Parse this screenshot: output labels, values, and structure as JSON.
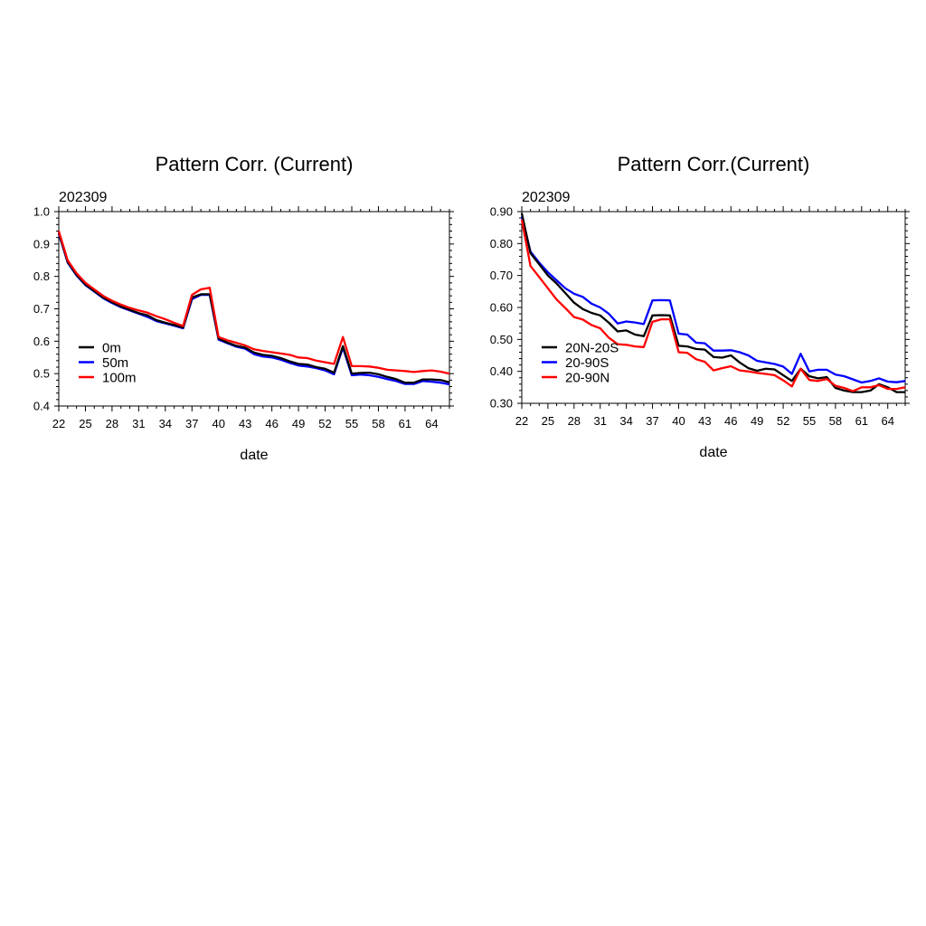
{
  "chart_data": [
    {
      "type": "line",
      "title": "Pattern Corr. (Current)",
      "subtitle": "202309",
      "xlabel": "date",
      "ylabel": "",
      "xlim": [
        22,
        66
      ],
      "ylim": [
        0.4,
        1.0
      ],
      "xticks": [
        22,
        25,
        28,
        31,
        34,
        37,
        40,
        43,
        46,
        49,
        52,
        55,
        58,
        61,
        64
      ],
      "yticks": [
        0.4,
        0.5,
        0.6,
        0.7,
        0.8,
        0.9,
        1.0
      ],
      "ytick_labels": [
        "0.4",
        "0.5",
        "0.6",
        "0.7",
        "0.8",
        "0.9",
        "1.0"
      ],
      "legend_position": "left-lower",
      "x": [
        22,
        23,
        24,
        25,
        26,
        27,
        28,
        29,
        30,
        31,
        32,
        33,
        34,
        35,
        36,
        37,
        38,
        39,
        40,
        41,
        42,
        43,
        44,
        45,
        46,
        47,
        48,
        49,
        50,
        51,
        52,
        53,
        54,
        55,
        56,
        57,
        58,
        59,
        60,
        61,
        62,
        63,
        64,
        65,
        66
      ],
      "series": [
        {
          "name": "0m",
          "color": "#000000",
          "values": [
            0.935,
            0.845,
            0.805,
            0.775,
            0.755,
            0.735,
            0.72,
            0.707,
            0.697,
            0.687,
            0.68,
            0.665,
            0.657,
            0.65,
            0.642,
            0.735,
            0.745,
            0.745,
            0.608,
            0.596,
            0.586,
            0.58,
            0.565,
            0.558,
            0.555,
            0.548,
            0.538,
            0.53,
            0.528,
            0.52,
            0.515,
            0.503,
            0.585,
            0.5,
            0.502,
            0.503,
            0.498,
            0.49,
            0.483,
            0.472,
            0.472,
            0.482,
            0.482,
            0.48,
            0.473
          ]
        },
        {
          "name": "50m",
          "color": "#0000ff",
          "values": [
            0.932,
            0.843,
            0.803,
            0.773,
            0.753,
            0.733,
            0.718,
            0.705,
            0.695,
            0.685,
            0.675,
            0.662,
            0.655,
            0.648,
            0.64,
            0.73,
            0.743,
            0.743,
            0.605,
            0.594,
            0.583,
            0.577,
            0.56,
            0.553,
            0.55,
            0.543,
            0.533,
            0.525,
            0.522,
            0.517,
            0.51,
            0.498,
            0.58,
            0.495,
            0.497,
            0.495,
            0.49,
            0.483,
            0.477,
            0.468,
            0.468,
            0.477,
            0.475,
            0.472,
            0.467
          ]
        },
        {
          "name": "100m",
          "color": "#ff0000",
          "values": [
            0.94,
            0.85,
            0.81,
            0.78,
            0.76,
            0.74,
            0.725,
            0.713,
            0.703,
            0.695,
            0.688,
            0.677,
            0.668,
            0.657,
            0.647,
            0.743,
            0.76,
            0.765,
            0.613,
            0.603,
            0.595,
            0.587,
            0.575,
            0.57,
            0.566,
            0.562,
            0.558,
            0.55,
            0.548,
            0.54,
            0.535,
            0.53,
            0.613,
            0.523,
            0.523,
            0.522,
            0.518,
            0.512,
            0.51,
            0.508,
            0.505,
            0.508,
            0.51,
            0.506,
            0.5
          ]
        }
      ]
    },
    {
      "type": "line",
      "title": "Pattern Corr.(Current)",
      "subtitle": "202309",
      "xlabel": "date",
      "ylabel": "",
      "xlim": [
        22,
        66
      ],
      "ylim": [
        0.3,
        0.9
      ],
      "xticks": [
        22,
        25,
        28,
        31,
        34,
        37,
        40,
        43,
        46,
        49,
        52,
        55,
        58,
        61,
        64
      ],
      "yticks": [
        0.3,
        0.4,
        0.5,
        0.6,
        0.7,
        0.8,
        0.9
      ],
      "ytick_labels": [
        "0.30",
        "0.40",
        "0.50",
        "0.60",
        "0.70",
        "0.80",
        "0.90"
      ],
      "legend_position": "left-lower",
      "x": [
        22,
        23,
        24,
        25,
        26,
        27,
        28,
        29,
        30,
        31,
        32,
        33,
        34,
        35,
        36,
        37,
        38,
        39,
        40,
        41,
        42,
        43,
        44,
        45,
        46,
        47,
        48,
        49,
        50,
        51,
        52,
        53,
        54,
        55,
        56,
        57,
        58,
        59,
        60,
        61,
        62,
        63,
        64,
        65,
        66
      ],
      "series": [
        {
          "name": "20N-20S",
          "color": "#000000",
          "values": [
            0.895,
            0.77,
            0.735,
            0.7,
            0.675,
            0.645,
            0.615,
            0.595,
            0.583,
            0.575,
            0.552,
            0.525,
            0.528,
            0.515,
            0.51,
            0.575,
            0.576,
            0.575,
            0.48,
            0.478,
            0.47,
            0.468,
            0.445,
            0.443,
            0.45,
            0.428,
            0.41,
            0.402,
            0.408,
            0.406,
            0.388,
            0.37,
            0.408,
            0.385,
            0.378,
            0.382,
            0.348,
            0.34,
            0.335,
            0.335,
            0.34,
            0.36,
            0.35,
            0.335,
            0.335
          ]
        },
        {
          "name": "20-90S",
          "color": "#0000ff",
          "values": [
            0.885,
            0.775,
            0.74,
            0.71,
            0.685,
            0.66,
            0.643,
            0.633,
            0.612,
            0.6,
            0.58,
            0.55,
            0.556,
            0.553,
            0.548,
            0.622,
            0.623,
            0.622,
            0.518,
            0.515,
            0.49,
            0.488,
            0.465,
            0.465,
            0.466,
            0.46,
            0.45,
            0.433,
            0.428,
            0.423,
            0.415,
            0.392,
            0.455,
            0.4,
            0.405,
            0.405,
            0.39,
            0.385,
            0.375,
            0.365,
            0.37,
            0.378,
            0.368,
            0.366,
            0.37
          ]
        },
        {
          "name": "20-90N",
          "color": "#ff0000",
          "values": [
            0.875,
            0.73,
            0.695,
            0.66,
            0.625,
            0.598,
            0.57,
            0.562,
            0.545,
            0.535,
            0.505,
            0.485,
            0.483,
            0.478,
            0.476,
            0.555,
            0.563,
            0.563,
            0.46,
            0.458,
            0.438,
            0.43,
            0.403,
            0.41,
            0.416,
            0.403,
            0.4,
            0.395,
            0.392,
            0.388,
            0.372,
            0.353,
            0.408,
            0.373,
            0.37,
            0.376,
            0.355,
            0.348,
            0.338,
            0.35,
            0.35,
            0.357,
            0.345,
            0.345,
            0.35
          ]
        }
      ]
    }
  ]
}
